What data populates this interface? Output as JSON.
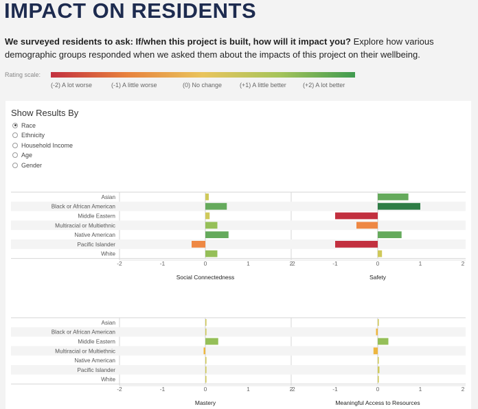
{
  "header": {
    "title": "IMPACT ON RESIDENTS",
    "intro_bold": "We surveyed residents to ask: If/when this project is built, how will it impact you?",
    "intro_rest": " Explore how various demographic groups responded when we asked them about the impacts of this project on their wellbeing."
  },
  "rating_scale": {
    "label": "Rating scale:",
    "colors": [
      "#c2303f",
      "#e8823e",
      "#e9c45c",
      "#a6c45b",
      "#3f9a4f"
    ],
    "ticks": [
      "(-2) A lot worse",
      "(-1) A little worse",
      "(0) No change",
      "(+1) A little better",
      "(+2) A lot better"
    ]
  },
  "filter": {
    "title": "Show Results By",
    "options": [
      "Race",
      "Ethnicity",
      "Household Income",
      "Age",
      "Gender"
    ],
    "selected": "Race"
  },
  "chart_data": [
    {
      "type": "bar",
      "title": "Social Connectedness",
      "categories": [
        "Asian",
        "Black or African American",
        "Middle Eastern",
        "Multiracial or Multiethnic",
        "Native American",
        "Pacific Islander",
        "White"
      ],
      "values": [
        0.08,
        0.5,
        0.1,
        0.28,
        0.54,
        -0.32,
        0.28
      ],
      "xlim": [
        -2,
        2
      ],
      "xticks": [
        "-2",
        "-1",
        "0",
        "1",
        "2"
      ]
    },
    {
      "type": "bar",
      "title": "Safety",
      "categories": [
        "Asian",
        "Black or African American",
        "Middle Eastern",
        "Multiracial or Multiethnic",
        "Native American",
        "Pacific Islander",
        "White"
      ],
      "values": [
        0.72,
        1.0,
        -1.0,
        -0.5,
        0.56,
        -1.0,
        0.1
      ],
      "xlim": [
        -2,
        2
      ],
      "xticks": [
        "-2",
        "-1",
        "0",
        "1",
        "2"
      ]
    },
    {
      "type": "bar",
      "title": "Mastery",
      "categories": [
        "Asian",
        "Black or African American",
        "Middle Eastern",
        "Multiracial or Multiethnic",
        "Native American",
        "Pacific Islander",
        "White"
      ],
      "values": [
        0.02,
        0.02,
        0.3,
        -0.04,
        0.02,
        0.02,
        0.02
      ],
      "xlim": [
        -2,
        2
      ],
      "xticks": [
        "-2",
        "-1",
        "0",
        "1",
        "2"
      ]
    },
    {
      "type": "bar",
      "title": "Meaningful Access to Resources",
      "categories": [
        "Asian",
        "Black or African American",
        "Middle Eastern",
        "Multiracial or Multiethnic",
        "Native American",
        "Pacific Islander",
        "White"
      ],
      "values": [
        0.02,
        -0.04,
        0.25,
        -0.1,
        0.0,
        0.04,
        0.02
      ],
      "xlim": [
        -2,
        2
      ],
      "xticks": [
        "-2",
        "-1",
        "0",
        "1",
        "2"
      ]
    }
  ]
}
